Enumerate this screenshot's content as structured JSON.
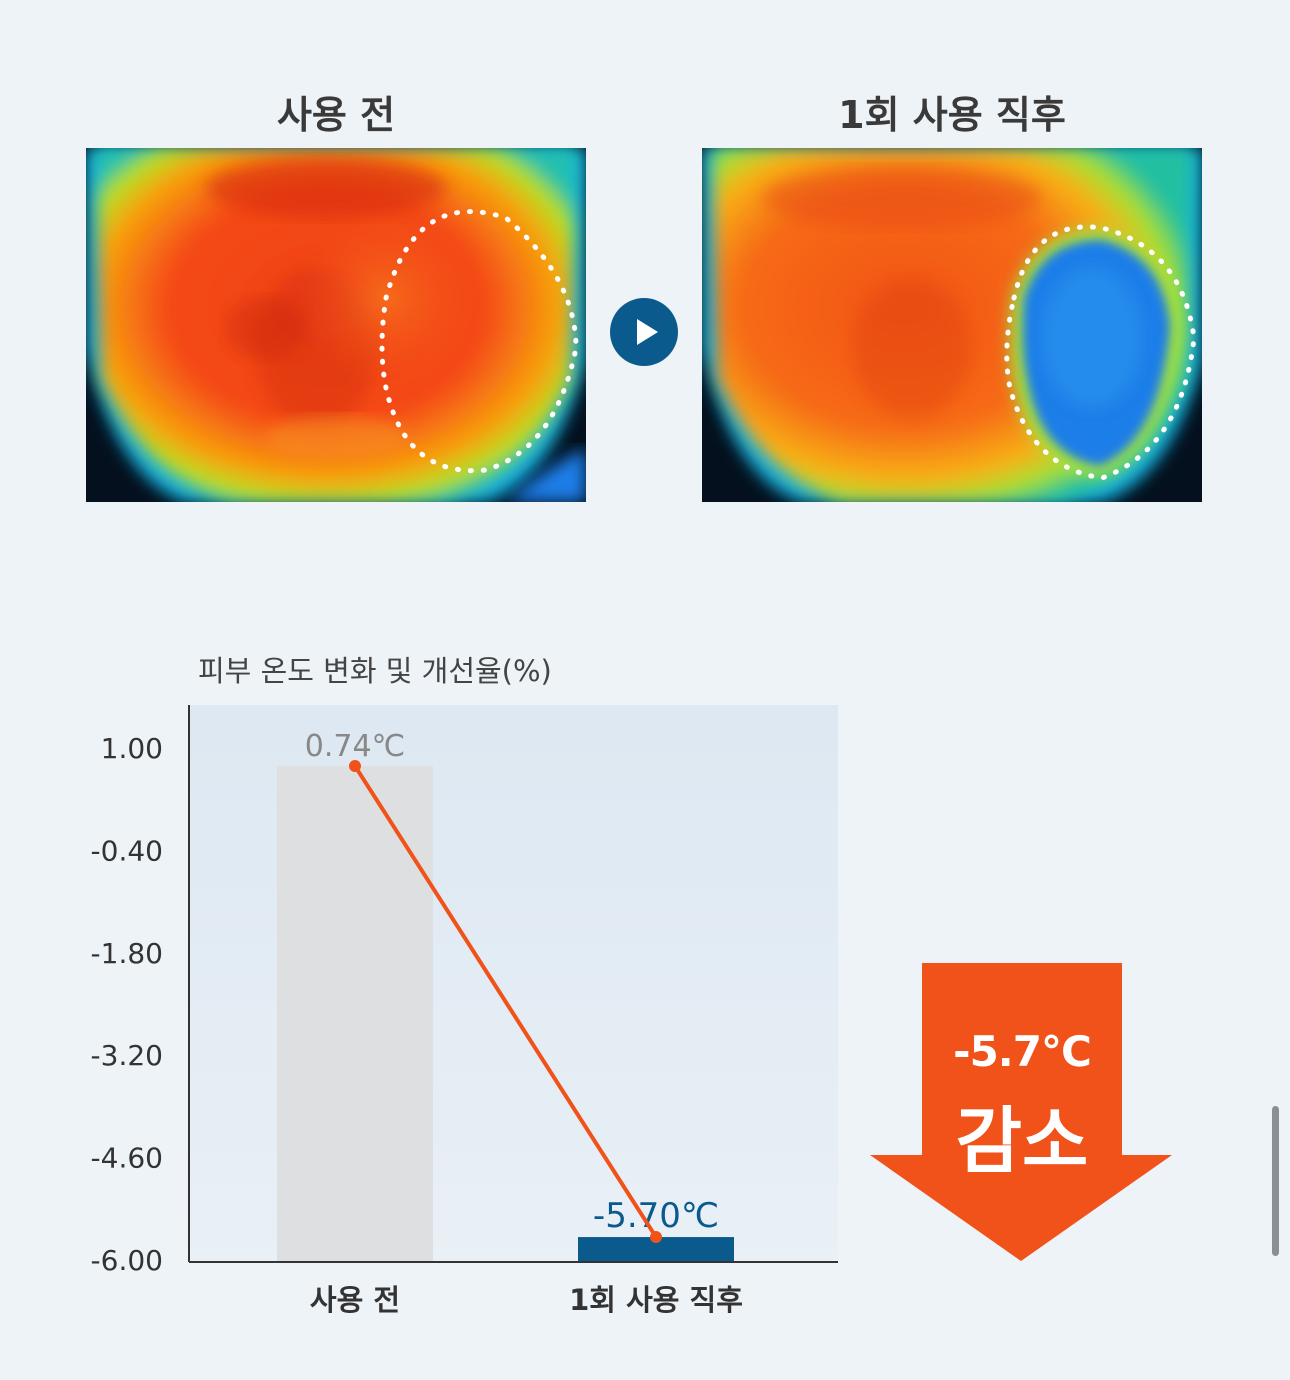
{
  "panels": {
    "before_title": "사용 전",
    "after_title": "1회 사용 직후"
  },
  "colors": {
    "bar_before": "#dedfe1",
    "bar_after": "#0b5a8e",
    "line": "#f0521a",
    "accent": "#f0521a",
    "label_before": "#888888",
    "label_after": "#0b5a8e"
  },
  "chart_data": {
    "type": "bar",
    "title": "피부 온도 변화 및 개선율(%)",
    "categories": [
      "사용 전",
      "1회 사용 직후"
    ],
    "values": [
      0.74,
      -5.7
    ],
    "data_labels": [
      "0.74℃",
      "-5.70℃"
    ],
    "yticks": [
      "1.00",
      "-0.40",
      "-1.80",
      "-3.20",
      "-4.60",
      "-6.00"
    ],
    "ylim": [
      -6.0,
      1.6
    ],
    "grid": false,
    "overlay_line": true
  },
  "callout": {
    "value": "-5.7℃",
    "word": "감소"
  }
}
